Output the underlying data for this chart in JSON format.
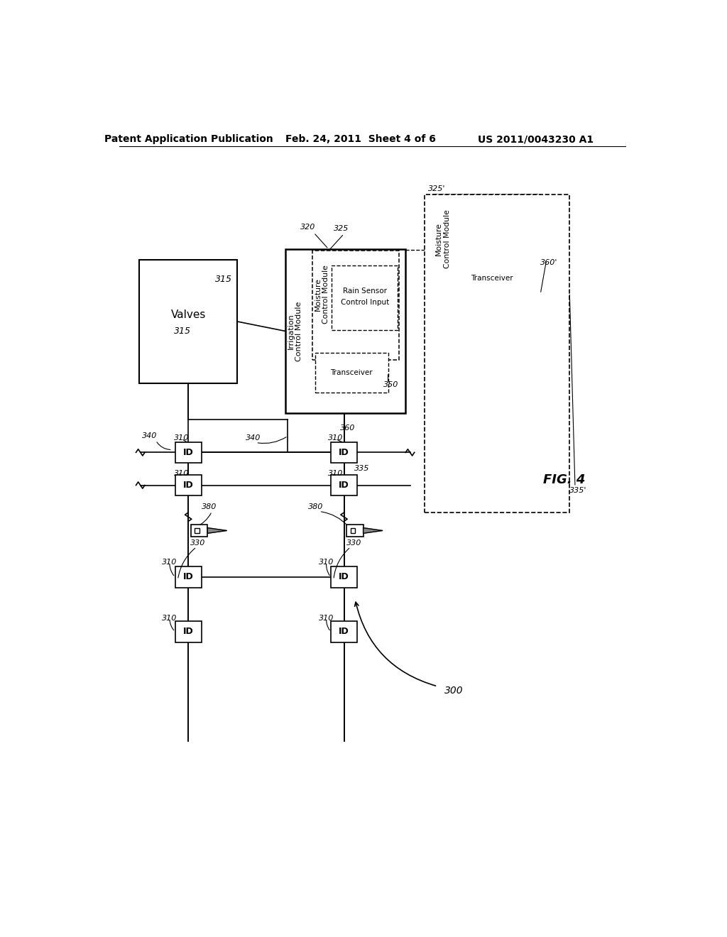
{
  "bg_color": "#ffffff",
  "header_text": "Patent Application Publication",
  "header_date": "Feb. 24, 2011  Sheet 4 of 6",
  "header_patent": "US 2011/0043230 A1",
  "fig_label": "FIG. 4"
}
